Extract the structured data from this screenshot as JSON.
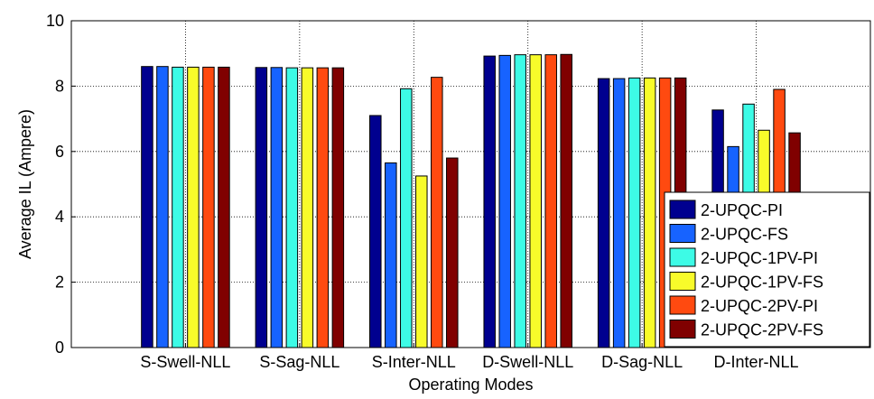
{
  "chart_data": {
    "type": "bar",
    "title": "",
    "xlabel": "Operating Modes",
    "ylabel": "Average IL (Ampere)",
    "ylim": [
      0,
      10
    ],
    "yticks": [
      0,
      2,
      4,
      6,
      8,
      10
    ],
    "grid": true,
    "grid_style": "dotted",
    "legend_position": "bottom-right",
    "categories": [
      "S-Swell-NLL",
      "S-Sag-NLL",
      "S-Inter-NLL",
      "D-Swell-NLL",
      "D-Sag-NLL",
      "D-Inter-NLL"
    ],
    "series": [
      {
        "name": "2-UPQC-PI",
        "color": "#00008f",
        "values": [
          8.6,
          8.57,
          7.1,
          8.92,
          8.23,
          7.27
        ]
      },
      {
        "name": "2-UPQC-FS",
        "color": "#1763ff",
        "values": [
          8.6,
          8.57,
          5.65,
          8.94,
          8.23,
          6.15
        ]
      },
      {
        "name": "2-UPQC-1PV-PI",
        "color": "#3dfbe6",
        "values": [
          8.58,
          8.56,
          7.92,
          8.96,
          8.25,
          7.45
        ]
      },
      {
        "name": "2-UPQC-1PV-FS",
        "color": "#f8fb2a",
        "values": [
          8.58,
          8.56,
          5.25,
          8.96,
          8.25,
          6.65
        ]
      },
      {
        "name": "2-UPQC-2PV-PI",
        "color": "#ff4a10",
        "values": [
          8.58,
          8.56,
          8.27,
          8.96,
          8.25,
          7.9
        ]
      },
      {
        "name": "2-UPQC-2PV-FS",
        "color": "#800000",
        "values": [
          8.58,
          8.56,
          5.8,
          8.97,
          8.25,
          6.57
        ]
      }
    ]
  }
}
